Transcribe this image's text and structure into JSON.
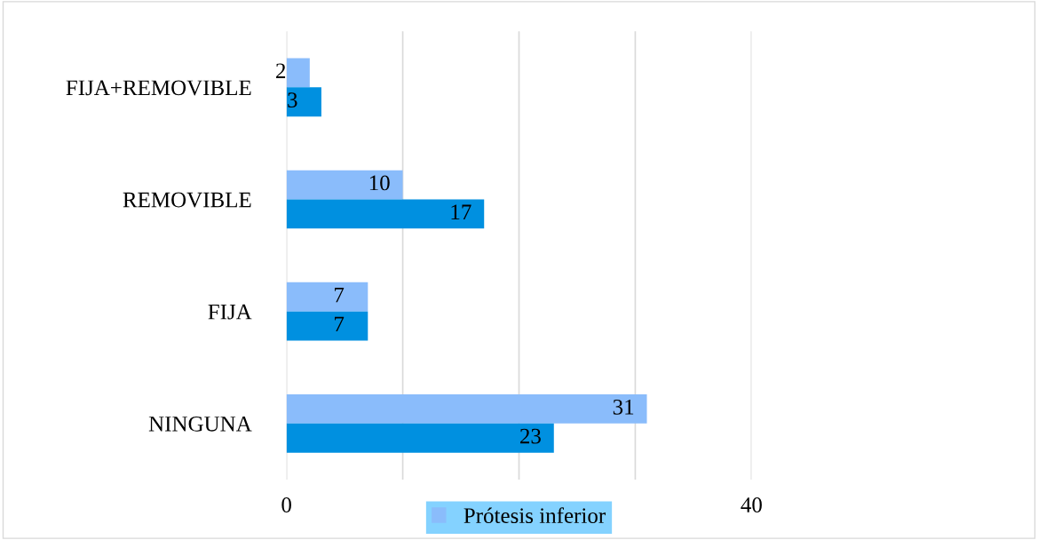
{
  "chart_data": {
    "type": "bar",
    "orientation": "horizontal",
    "categories": [
      "FIJA+REMOVIBLE",
      "REMOVIBLE",
      "FIJA",
      "NINGUNA"
    ],
    "series": [
      {
        "name": "Prótesis inferior",
        "color": "#8abcfb",
        "values": [
          2,
          10,
          7,
          31
        ]
      },
      {
        "color": "#0090e0",
        "values": [
          3,
          17,
          7,
          23
        ]
      }
    ],
    "xlim": [
      0,
      40
    ],
    "xticks": [
      0,
      {
        "value": 10,
        "label": null
      },
      {
        "value": 20,
        "label": null
      },
      {
        "value": 30,
        "label": null
      },
      40
    ],
    "grid": "x",
    "legend": "bottom",
    "data_labels": true
  }
}
